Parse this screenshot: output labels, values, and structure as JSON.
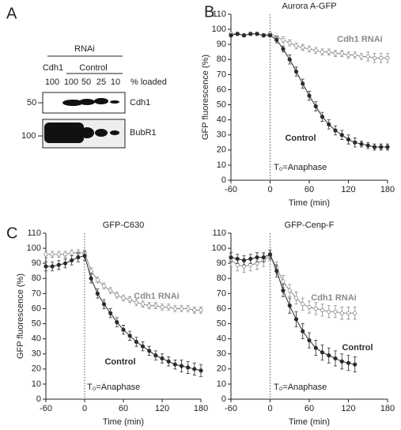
{
  "panels": [
    "A",
    "B",
    "C"
  ],
  "blot": {
    "header": "RNAi",
    "groups": [
      "Cdh1",
      "Control"
    ],
    "lanes": [
      "100",
      "100",
      "50",
      "25",
      "10"
    ],
    "lanes_caption": "% loaded",
    "markers": [
      "50",
      "100"
    ],
    "bands": [
      "Cdh1",
      "BubR1"
    ]
  },
  "chart_data": [
    {
      "type": "line",
      "title": "Aurora A-GFP",
      "xlabel": "Time (min)",
      "ylabel": "GFP fluorescence (%)",
      "annotation": "T₀=Anaphase",
      "vline": 0,
      "x": [
        -60,
        -50,
        -40,
        -30,
        -20,
        -10,
        0,
        10,
        20,
        30,
        40,
        50,
        60,
        70,
        80,
        90,
        100,
        110,
        120,
        130,
        140,
        150,
        160,
        170,
        180
      ],
      "xlim": [
        -60,
        180
      ],
      "xticks": [
        -60,
        0,
        60,
        120,
        180
      ],
      "ylim": [
        0,
        110
      ],
      "yticks": [
        0,
        10,
        20,
        30,
        40,
        50,
        60,
        70,
        80,
        90,
        100,
        110
      ],
      "series": [
        {
          "name": "Cdh1 RNAi",
          "color": "#8a8a8a",
          "values": [
            97,
            97,
            96,
            97,
            97,
            96,
            97,
            95,
            93,
            91,
            89,
            88,
            87,
            86,
            85,
            85,
            84,
            84,
            83,
            83,
            82,
            82,
            81,
            81,
            81
          ],
          "errors": [
            1,
            1,
            1,
            1,
            1,
            1,
            1,
            1,
            2,
            2,
            2,
            2,
            2,
            2,
            2,
            2,
            2,
            2,
            2,
            2,
            2,
            3,
            3,
            3,
            3
          ]
        },
        {
          "name": "Control",
          "color": "#2b2b2b",
          "values": [
            96,
            97,
            96,
            97,
            97,
            96,
            96,
            93,
            87,
            80,
            72,
            64,
            56,
            49,
            42,
            37,
            33,
            30,
            27,
            25,
            24,
            23,
            22,
            22,
            22
          ],
          "errors": [
            1,
            1,
            1,
            1,
            1,
            1,
            1,
            2,
            2,
            3,
            3,
            3,
            3,
            3,
            3,
            3,
            3,
            3,
            3,
            3,
            2,
            2,
            2,
            2,
            2
          ]
        }
      ]
    },
    {
      "type": "line",
      "title": "GFP-C630",
      "xlabel": "Time (min)",
      "ylabel": "GFP fluorescence (%)",
      "annotation": "T₀=Anaphase",
      "vline": 0,
      "x": [
        -60,
        -50,
        -40,
        -30,
        -20,
        -10,
        0,
        10,
        20,
        30,
        40,
        50,
        60,
        70,
        80,
        90,
        100,
        110,
        120,
        130,
        140,
        150,
        160,
        170,
        180
      ],
      "xlim": [
        -60,
        180
      ],
      "xticks": [
        -60,
        0,
        60,
        120,
        180
      ],
      "ylim": [
        0,
        110
      ],
      "yticks": [
        0,
        10,
        20,
        30,
        40,
        50,
        60,
        70,
        80,
        90,
        100,
        110
      ],
      "series": [
        {
          "name": "Cdh1 RNAi",
          "color": "#8a8a8a",
          "values": [
            96,
            96,
            96,
            96,
            97,
            97,
            97,
            85,
            79,
            75,
            72,
            69,
            67,
            66,
            64,
            63,
            62,
            62,
            61,
            61,
            60,
            60,
            60,
            59,
            59
          ],
          "errors": [
            2,
            2,
            2,
            2,
            2,
            2,
            2,
            2,
            2,
            2,
            2,
            2,
            2,
            2,
            2,
            2,
            2,
            2,
            2,
            2,
            2,
            2,
            2,
            2,
            2
          ]
        },
        {
          "name": "Control",
          "color": "#2b2b2b",
          "values": [
            88,
            88,
            89,
            90,
            92,
            94,
            95,
            80,
            70,
            63,
            57,
            51,
            46,
            42,
            38,
            35,
            32,
            29,
            27,
            25,
            23,
            22,
            21,
            20,
            19
          ],
          "errors": [
            3,
            3,
            3,
            3,
            3,
            3,
            3,
            3,
            3,
            3,
            3,
            3,
            3,
            3,
            3,
            3,
            3,
            3,
            3,
            3,
            3,
            4,
            4,
            4,
            4
          ]
        }
      ]
    },
    {
      "type": "line",
      "title": "GFP-Cenp-F",
      "xlabel": "Time (min)",
      "annotation": "T₀=Anaphase",
      "vline": 0,
      "x": [
        -60,
        -50,
        -40,
        -30,
        -20,
        -10,
        0,
        10,
        20,
        30,
        40,
        50,
        60,
        70,
        80,
        90,
        100,
        110,
        120,
        130
      ],
      "xlim": [
        -60,
        180
      ],
      "xticks": [
        -60,
        0,
        60,
        120,
        180
      ],
      "ylim": [
        0,
        110
      ],
      "yticks": [
        0,
        10,
        20,
        30,
        40,
        50,
        60,
        70,
        80,
        90,
        100,
        110
      ],
      "series": [
        {
          "name": "Cdh1 RNAi",
          "color": "#8a8a8a",
          "values": [
            92,
            89,
            88,
            89,
            90,
            92,
            95,
            87,
            78,
            72,
            67,
            63,
            61,
            60,
            59,
            58,
            58,
            57,
            57,
            57
          ],
          "errors": [
            4,
            4,
            4,
            4,
            4,
            4,
            3,
            4,
            4,
            4,
            4,
            4,
            4,
            4,
            4,
            4,
            4,
            4,
            4,
            4
          ]
        },
        {
          "name": "Control",
          "color": "#2b2b2b",
          "values": [
            94,
            93,
            92,
            93,
            94,
            94,
            96,
            85,
            72,
            62,
            53,
            45,
            39,
            34,
            31,
            29,
            27,
            25,
            24,
            23
          ],
          "errors": [
            3,
            3,
            3,
            3,
            3,
            3,
            3,
            4,
            4,
            5,
            5,
            5,
            5,
            5,
            5,
            5,
            5,
            5,
            5,
            5
          ]
        }
      ]
    }
  ]
}
